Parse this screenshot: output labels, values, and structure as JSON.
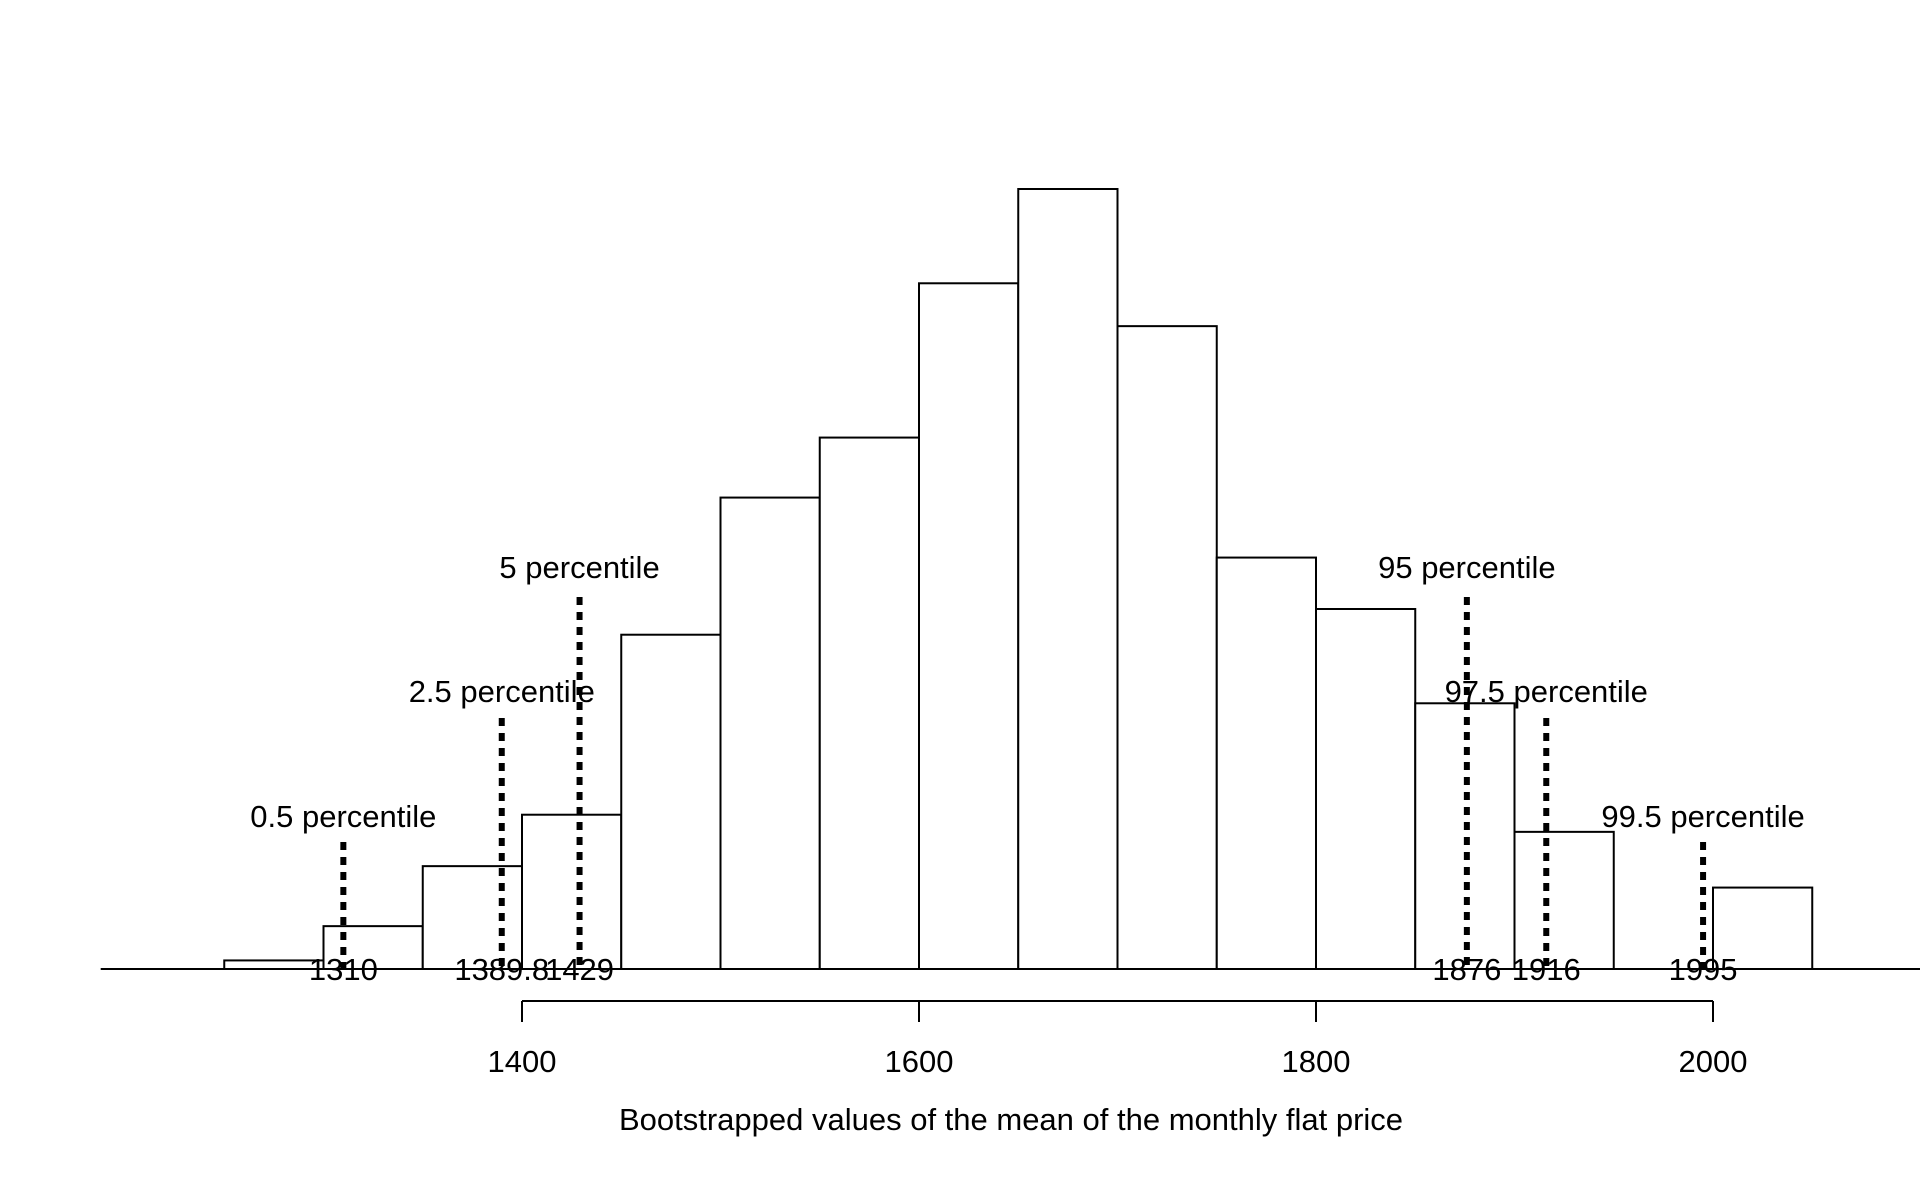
{
  "chart_data": {
    "type": "bar",
    "title": "",
    "xlabel": "Bootstrapped values of the mean of the monthly flat price",
    "ylabel": "",
    "xlim": [
      1220,
      2075
    ],
    "x_ticks": [
      1400,
      1600,
      1800,
      2000
    ],
    "bin_width": 50,
    "bins": [
      {
        "start": 1250,
        "end": 1300,
        "count": 1
      },
      {
        "start": 1300,
        "end": 1350,
        "count": 5
      },
      {
        "start": 1350,
        "end": 1400,
        "count": 12
      },
      {
        "start": 1400,
        "end": 1450,
        "count": 18
      },
      {
        "start": 1450,
        "end": 1500,
        "count": 39
      },
      {
        "start": 1500,
        "end": 1550,
        "count": 55
      },
      {
        "start": 1550,
        "end": 1600,
        "count": 62
      },
      {
        "start": 1600,
        "end": 1650,
        "count": 80
      },
      {
        "start": 1650,
        "end": 1700,
        "count": 91
      },
      {
        "start": 1700,
        "end": 1750,
        "count": 75
      },
      {
        "start": 1750,
        "end": 1800,
        "count": 48
      },
      {
        "start": 1800,
        "end": 1850,
        "count": 42
      },
      {
        "start": 1850,
        "end": 1900,
        "count": 31
      },
      {
        "start": 1900,
        "end": 1950,
        "count": 16
      },
      {
        "start": 1950,
        "end": 2000,
        "count": 0
      },
      {
        "start": 2000,
        "end": 2050,
        "count": 9.5
      }
    ],
    "ymax": 91,
    "grid": false,
    "legend": "none",
    "percentiles": [
      {
        "label": "0.5 percentile",
        "value": 1310,
        "value_label": "1310",
        "level": 1
      },
      {
        "label": "2.5 percentile",
        "value": 1389.8,
        "value_label": "1389.8",
        "level": 2
      },
      {
        "label": "5 percentile",
        "value": 1429,
        "value_label": "1429",
        "level": 3
      },
      {
        "label": "95 percentile",
        "value": 1876,
        "value_label": "1876",
        "level": 3
      },
      {
        "label": "97.5 percentile",
        "value": 1916,
        "value_label": "1916",
        "level": 2
      },
      {
        "label": "99.5 percentile",
        "value": 1995,
        "value_label": "1995",
        "level": 1
      }
    ]
  }
}
